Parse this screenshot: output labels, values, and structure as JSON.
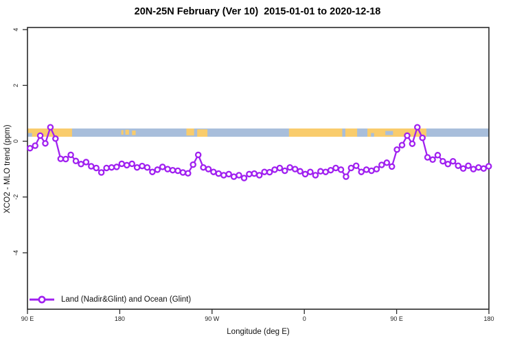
{
  "chart_data": {
    "type": "line",
    "title": "20N-25N February (Ver 10)  2015-01-01 to 2020-12-18",
    "xlabel": "Longitude (deg E)",
    "ylabel": "XCO2 - MLO trend (ppm)",
    "grid": false,
    "legend_position": "bottom-left",
    "xlim": [
      90,
      540
    ],
    "ylim": [
      -6,
      4.1
    ],
    "x_tick_lons": [
      90,
      180,
      270,
      360,
      450,
      540
    ],
    "x_tick_labels": [
      "90 E",
      "180",
      "90 W",
      "0",
      "90 E",
      "180"
    ],
    "y_tick_values": [
      4,
      2,
      0,
      -2,
      -4
    ],
    "y_tick_labels": [
      "4",
      "2",
      "0",
      "-2",
      "-4"
    ],
    "series_color": "#A020F0",
    "legend": {
      "label": "Land (Nadir&Glint) and Ocean (Glint)"
    },
    "series": [
      {
        "name": "Land (Nadir&Glint) and Ocean (Glint)",
        "x_start_lon": 92.5,
        "x_step_lon": 4.97,
        "values": [
          -0.25,
          -0.16,
          0.2,
          -0.08,
          0.5,
          0.09,
          -0.63,
          -0.64,
          -0.49,
          -0.71,
          -0.82,
          -0.75,
          -0.9,
          -0.96,
          -1.12,
          -0.96,
          -0.94,
          -0.92,
          -0.81,
          -0.86,
          -0.81,
          -0.94,
          -0.89,
          -0.94,
          -1.1,
          -1.02,
          -0.92,
          -1.0,
          -1.04,
          -1.06,
          -1.12,
          -1.15,
          -0.84,
          -0.49,
          -0.94,
          -1.0,
          -1.1,
          -1.16,
          -1.22,
          -1.18,
          -1.27,
          -1.22,
          -1.32,
          -1.18,
          -1.16,
          -1.22,
          -1.1,
          -1.11,
          -1.02,
          -0.96,
          -1.06,
          -0.94,
          -1.0,
          -1.08,
          -1.18,
          -1.1,
          -1.22,
          -1.08,
          -1.1,
          -1.04,
          -0.96,
          -1.02,
          -1.27,
          -0.96,
          -0.88,
          -1.1,
          -1.02,
          -1.06,
          -1.0,
          -0.85,
          -0.77,
          -0.91,
          -0.3,
          -0.14,
          0.2,
          -0.09,
          0.5,
          0.12,
          -0.58,
          -0.66,
          -0.5,
          -0.72,
          -0.82,
          -0.72,
          -0.88,
          -0.98,
          -0.88,
          -1.0,
          -0.94,
          -0.98,
          -0.9
        ]
      }
    ],
    "map_band": {
      "description": "land-ocean strip for 20N-25N",
      "value_range": [
        0.16,
        0.455
      ],
      "ocean_color": "#A8BEDB",
      "land_color": "#F9CC6C",
      "land_segments": [
        {
          "from": 90,
          "to": 133.5,
          "top": 0,
          "h": 1
        },
        {
          "from": 181.5,
          "to": 183.5,
          "top": 0.2,
          "h": 0.55
        },
        {
          "from": 185.5,
          "to": 189,
          "top": 0.15,
          "h": 0.6
        },
        {
          "from": 192,
          "to": 195.5,
          "top": 0.25,
          "h": 0.55
        },
        {
          "from": 245,
          "to": 252.5,
          "top": 0,
          "h": 0.85
        },
        {
          "from": 255.5,
          "to": 265.5,
          "top": 0.1,
          "h": 0.9
        },
        {
          "from": 345,
          "to": 397,
          "top": 0,
          "h": 1
        },
        {
          "from": 400,
          "to": 411.5,
          "top": 0,
          "h": 1
        },
        {
          "from": 421.5,
          "to": 479,
          "top": 0,
          "h": 1
        }
      ],
      "ocean_overlays": [
        {
          "from": 90,
          "to": 94.5,
          "top": 0.55,
          "h": 0.45
        },
        {
          "from": 425,
          "to": 428,
          "top": 0.55,
          "h": 0.45
        },
        {
          "from": 439,
          "to": 446.5,
          "top": 0.3,
          "h": 0.5
        }
      ]
    }
  }
}
